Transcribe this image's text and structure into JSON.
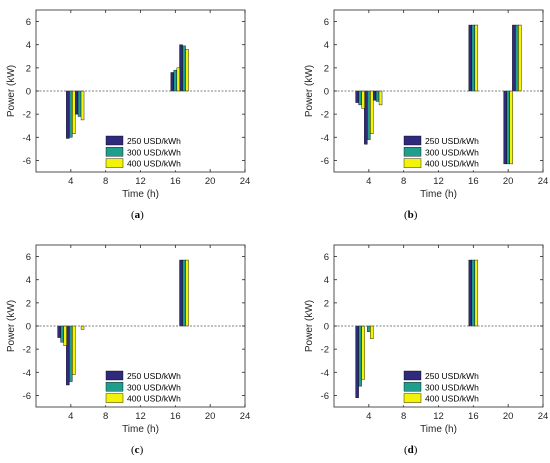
{
  "figure": {
    "captions": [
      "(a)",
      "(b)",
      "(c)",
      "(d)"
    ],
    "caption_letters": [
      "a",
      "b",
      "c",
      "d"
    ]
  },
  "colors": {
    "series": [
      "#2f2a7c",
      "#1f9e8e",
      "#f2f20a"
    ],
    "baseline": "#555555",
    "axis": "#262626"
  },
  "chart_data": [
    {
      "type": "bar",
      "panel": "a",
      "xlabel": "Time (h)",
      "ylabel": "Power (kW)",
      "xlim": [
        0,
        24
      ],
      "ylim": [
        -7,
        7
      ],
      "xticks": [
        4,
        8,
        12,
        16,
        20,
        24
      ],
      "yticks": [
        -6,
        -4,
        -2,
        0,
        2,
        4,
        6
      ],
      "legend_position": "lower-center",
      "series": [
        {
          "name": "250 USD/kWh",
          "x": [
            4,
            5,
            16,
            17
          ],
          "values": [
            -4.1,
            -2.0,
            1.6,
            4.0
          ]
        },
        {
          "name": "300 USD/kWh",
          "x": [
            4,
            5,
            16,
            17
          ],
          "values": [
            -4.0,
            -2.2,
            1.8,
            3.9
          ]
        },
        {
          "name": "400 USD/kWh",
          "x": [
            4,
            5,
            16,
            17
          ],
          "values": [
            -3.7,
            -2.5,
            2.0,
            3.6
          ]
        }
      ]
    },
    {
      "type": "bar",
      "panel": "b",
      "xlabel": "Time (h)",
      "ylabel": "Power (kW)",
      "xlim": [
        0,
        24
      ],
      "ylim": [
        -7,
        7
      ],
      "xticks": [
        4,
        8,
        12,
        16,
        20,
        24
      ],
      "yticks": [
        -6,
        -4,
        -2,
        0,
        2,
        4,
        6
      ],
      "legend_position": "lower-center",
      "series": [
        {
          "name": "250 USD/kWh",
          "x": [
            3,
            4,
            5,
            16,
            20,
            21
          ],
          "values": [
            -1.0,
            -4.6,
            -0.8,
            5.7,
            -6.3,
            5.7
          ]
        },
        {
          "name": "300 USD/kWh",
          "x": [
            3,
            4,
            5,
            16,
            20,
            21
          ],
          "values": [
            -1.2,
            -4.2,
            -0.9,
            5.7,
            -6.3,
            5.7
          ]
        },
        {
          "name": "400 USD/kWh",
          "x": [
            3,
            4,
            5,
            16,
            20,
            21
          ],
          "values": [
            -1.5,
            -3.7,
            -1.2,
            5.7,
            -6.3,
            5.7
          ]
        }
      ]
    },
    {
      "type": "bar",
      "panel": "c",
      "xlabel": "Time (h)",
      "ylabel": "Power (kW)",
      "xlim": [
        0,
        24
      ],
      "ylim": [
        -7,
        7
      ],
      "xticks": [
        4,
        8,
        12,
        16,
        20,
        24
      ],
      "yticks": [
        -6,
        -4,
        -2,
        0,
        2,
        4,
        6
      ],
      "legend_position": "lower-center",
      "series": [
        {
          "name": "250 USD/kWh",
          "x": [
            3,
            4,
            5,
            17
          ],
          "values": [
            -1.0,
            -5.1,
            0,
            5.7
          ]
        },
        {
          "name": "300 USD/kWh",
          "x": [
            3,
            4,
            5,
            17
          ],
          "values": [
            -1.4,
            -4.8,
            0,
            5.7
          ]
        },
        {
          "name": "400 USD/kWh",
          "x": [
            3,
            4,
            5,
            17
          ],
          "values": [
            -1.7,
            -4.2,
            -0.3,
            5.7
          ]
        }
      ]
    },
    {
      "type": "bar",
      "panel": "d",
      "xlabel": "Time (h)",
      "ylabel": "Power (kW)",
      "xlim": [
        0,
        24
      ],
      "ylim": [
        -7,
        7
      ],
      "xticks": [
        4,
        8,
        12,
        16,
        20,
        24
      ],
      "yticks": [
        -6,
        -4,
        -2,
        0,
        2,
        4,
        6
      ],
      "legend_position": "lower-center",
      "series": [
        {
          "name": "250 USD/kWh",
          "x": [
            3,
            4,
            16
          ],
          "values": [
            -6.2,
            0,
            5.7
          ]
        },
        {
          "name": "300 USD/kWh",
          "x": [
            3,
            4,
            16
          ],
          "values": [
            -5.2,
            -0.5,
            5.7
          ]
        },
        {
          "name": "400 USD/kWh",
          "x": [
            3,
            4,
            16
          ],
          "values": [
            -4.6,
            -1.1,
            5.7
          ]
        }
      ]
    }
  ]
}
